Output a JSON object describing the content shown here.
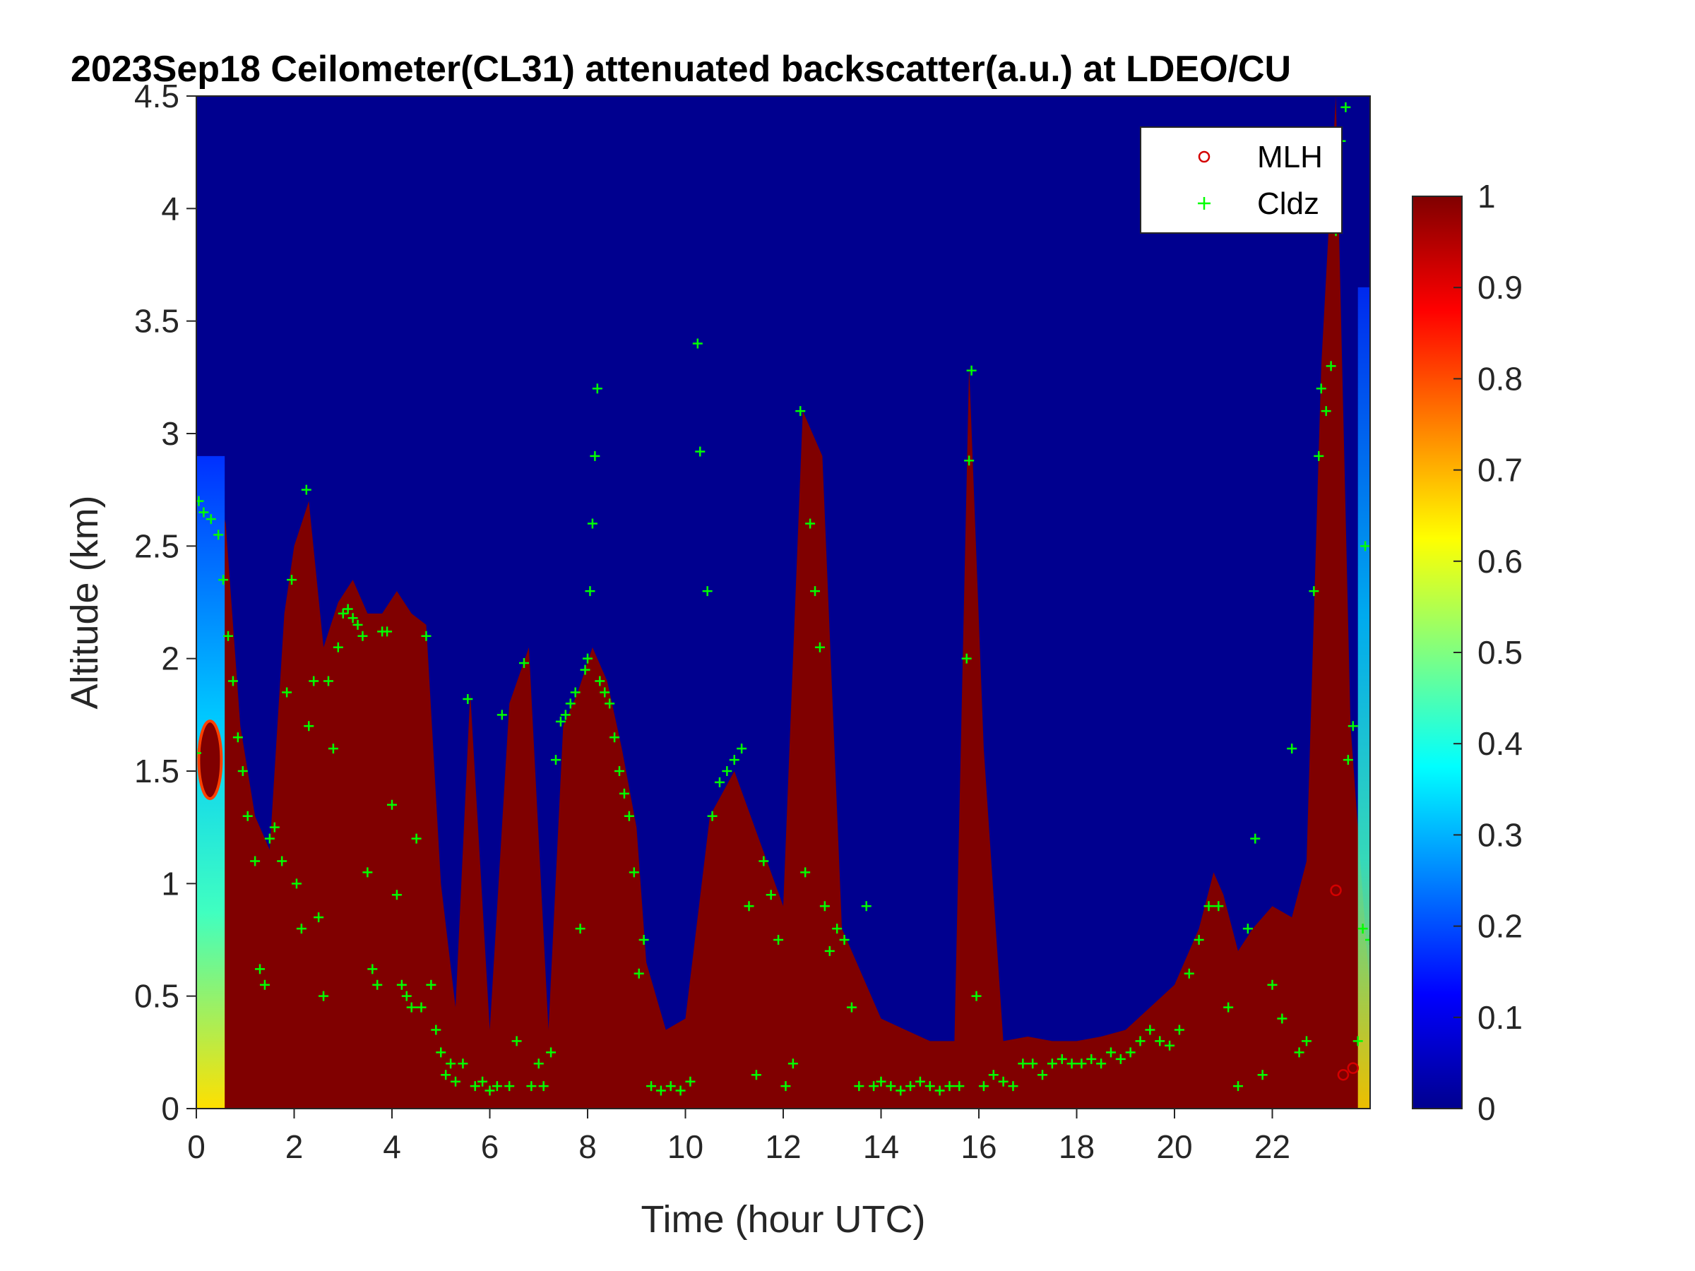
{
  "chart_data": {
    "type": "heatmap",
    "title": "2023Sep18 Ceilometer(CL31) attenuated backscatter(a.u.) at LDEO/CU",
    "xlabel": "Time (hour UTC)",
    "ylabel": "Altitude (km)",
    "xlim": [
      0,
      24
    ],
    "ylim": [
      0,
      4.5
    ],
    "x_ticks": [
      "0",
      "2",
      "4",
      "6",
      "8",
      "10",
      "12",
      "14",
      "16",
      "18",
      "20",
      "22"
    ],
    "y_ticks": [
      "0",
      "0.5",
      "1",
      "1.5",
      "2",
      "2.5",
      "3",
      "3.5",
      "4",
      "4.5"
    ],
    "colorbar": {
      "colormap": "jet",
      "range": [
        0,
        1
      ],
      "ticks": [
        "0",
        "0.1",
        "0.2",
        "0.3",
        "0.4",
        "0.5",
        "0.6",
        "0.7",
        "0.8",
        "0.9",
        "1"
      ]
    },
    "legend": {
      "position": "top-right",
      "entries": [
        {
          "label": "MLH",
          "marker": "circle",
          "color": "#d40000"
        },
        {
          "label": "Cldz",
          "marker": "plus",
          "color": "#00ff00"
        }
      ]
    },
    "layer_top_km": [
      [
        0.0,
        2.9
      ],
      [
        0.3,
        2.85
      ],
      [
        0.6,
        2.6
      ],
      [
        0.9,
        1.7
      ],
      [
        1.2,
        1.3
      ],
      [
        1.5,
        1.15
      ],
      [
        1.8,
        2.2
      ],
      [
        2.0,
        2.5
      ],
      [
        2.3,
        2.7
      ],
      [
        2.6,
        2.05
      ],
      [
        2.9,
        2.25
      ],
      [
        3.2,
        2.35
      ],
      [
        3.5,
        2.2
      ],
      [
        3.8,
        2.2
      ],
      [
        4.1,
        2.3
      ],
      [
        4.4,
        2.2
      ],
      [
        4.7,
        2.15
      ],
      [
        5.0,
        1.0
      ],
      [
        5.3,
        0.45
      ],
      [
        5.6,
        1.85
      ],
      [
        6.0,
        0.35
      ],
      [
        6.4,
        1.8
      ],
      [
        6.8,
        2.05
      ],
      [
        7.2,
        0.35
      ],
      [
        7.5,
        1.7
      ],
      [
        7.8,
        1.85
      ],
      [
        8.1,
        2.05
      ],
      [
        8.4,
        1.9
      ],
      [
        8.7,
        1.6
      ],
      [
        9.0,
        1.25
      ],
      [
        9.2,
        0.65
      ],
      [
        9.6,
        0.35
      ],
      [
        10.0,
        0.4
      ],
      [
        10.5,
        1.3
      ],
      [
        11.0,
        1.5
      ],
      [
        11.5,
        1.2
      ],
      [
        12.0,
        0.9
      ],
      [
        12.4,
        3.1
      ],
      [
        12.8,
        2.9
      ],
      [
        13.2,
        0.8
      ],
      [
        13.6,
        0.6
      ],
      [
        14.0,
        0.4
      ],
      [
        14.5,
        0.35
      ],
      [
        15.0,
        0.3
      ],
      [
        15.5,
        0.3
      ],
      [
        15.8,
        3.3
      ],
      [
        16.1,
        1.6
      ],
      [
        16.5,
        0.3
      ],
      [
        17.0,
        0.32
      ],
      [
        17.5,
        0.3
      ],
      [
        18.0,
        0.3
      ],
      [
        18.5,
        0.32
      ],
      [
        19.0,
        0.35
      ],
      [
        19.5,
        0.45
      ],
      [
        20.0,
        0.55
      ],
      [
        20.5,
        0.8
      ],
      [
        20.8,
        1.05
      ],
      [
        21.0,
        0.95
      ],
      [
        21.3,
        0.7
      ],
      [
        21.6,
        0.8
      ],
      [
        22.0,
        0.9
      ],
      [
        22.4,
        0.85
      ],
      [
        22.7,
        1.1
      ],
      [
        23.0,
        3.3
      ],
      [
        23.3,
        4.5
      ],
      [
        23.6,
        1.7
      ],
      [
        24.0,
        0.5
      ]
    ],
    "series": [
      {
        "name": "Cldz",
        "points": [
          [
            0.0,
            1.58
          ],
          [
            0.05,
            2.7
          ],
          [
            0.15,
            2.65
          ],
          [
            0.3,
            2.62
          ],
          [
            0.45,
            2.55
          ],
          [
            0.55,
            2.35
          ],
          [
            0.65,
            2.1
          ],
          [
            0.75,
            1.9
          ],
          [
            0.85,
            1.65
          ],
          [
            0.95,
            1.5
          ],
          [
            1.05,
            1.3
          ],
          [
            1.2,
            1.1
          ],
          [
            1.3,
            0.62
          ],
          [
            1.4,
            0.55
          ],
          [
            1.5,
            1.2
          ],
          [
            1.6,
            1.25
          ],
          [
            1.75,
            1.1
          ],
          [
            1.85,
            1.85
          ],
          [
            1.95,
            2.35
          ],
          [
            2.05,
            1.0
          ],
          [
            2.15,
            0.8
          ],
          [
            2.25,
            2.75
          ],
          [
            2.3,
            1.7
          ],
          [
            2.4,
            1.9
          ],
          [
            2.5,
            0.85
          ],
          [
            2.6,
            0.5
          ],
          [
            2.7,
            1.9
          ],
          [
            2.8,
            1.6
          ],
          [
            2.9,
            2.05
          ],
          [
            3.0,
            2.2
          ],
          [
            3.1,
            2.22
          ],
          [
            3.2,
            2.18
          ],
          [
            3.3,
            2.15
          ],
          [
            3.4,
            2.1
          ],
          [
            3.5,
            1.05
          ],
          [
            3.6,
            0.62
          ],
          [
            3.7,
            0.55
          ],
          [
            3.8,
            2.12
          ],
          [
            3.9,
            2.12
          ],
          [
            4.0,
            1.35
          ],
          [
            4.1,
            0.95
          ],
          [
            4.2,
            0.55
          ],
          [
            4.3,
            0.5
          ],
          [
            4.4,
            0.45
          ],
          [
            4.5,
            1.2
          ],
          [
            4.6,
            0.45
          ],
          [
            4.7,
            2.1
          ],
          [
            4.8,
            0.55
          ],
          [
            4.9,
            0.35
          ],
          [
            5.0,
            0.25
          ],
          [
            5.1,
            0.15
          ],
          [
            5.2,
            0.2
          ],
          [
            5.3,
            0.12
          ],
          [
            5.45,
            0.2
          ],
          [
            5.55,
            1.82
          ],
          [
            5.7,
            0.1
          ],
          [
            5.85,
            0.12
          ],
          [
            6.0,
            0.08
          ],
          [
            6.15,
            0.1
          ],
          [
            6.25,
            1.75
          ],
          [
            6.4,
            0.1
          ],
          [
            6.55,
            0.3
          ],
          [
            6.7,
            1.98
          ],
          [
            6.85,
            0.1
          ],
          [
            7.0,
            0.2
          ],
          [
            7.1,
            0.1
          ],
          [
            7.25,
            0.25
          ],
          [
            7.35,
            1.55
          ],
          [
            7.45,
            1.72
          ],
          [
            7.55,
            1.75
          ],
          [
            7.65,
            1.8
          ],
          [
            7.75,
            1.85
          ],
          [
            7.85,
            0.8
          ],
          [
            7.95,
            1.95
          ],
          [
            8.0,
            2.0
          ],
          [
            8.05,
            2.3
          ],
          [
            8.1,
            2.6
          ],
          [
            8.15,
            2.9
          ],
          [
            8.2,
            3.2
          ],
          [
            8.25,
            1.9
          ],
          [
            8.35,
            1.85
          ],
          [
            8.45,
            1.8
          ],
          [
            8.55,
            1.65
          ],
          [
            8.65,
            1.5
          ],
          [
            8.75,
            1.4
          ],
          [
            8.85,
            1.3
          ],
          [
            8.95,
            1.05
          ],
          [
            9.05,
            0.6
          ],
          [
            9.15,
            0.75
          ],
          [
            9.3,
            0.1
          ],
          [
            9.5,
            0.08
          ],
          [
            9.7,
            0.1
          ],
          [
            9.9,
            0.08
          ],
          [
            10.1,
            0.12
          ],
          [
            10.25,
            3.4
          ],
          [
            10.3,
            2.92
          ],
          [
            10.45,
            2.3
          ],
          [
            10.55,
            1.3
          ],
          [
            10.7,
            1.45
          ],
          [
            10.85,
            1.5
          ],
          [
            11.0,
            1.55
          ],
          [
            11.15,
            1.6
          ],
          [
            11.3,
            0.9
          ],
          [
            11.45,
            0.15
          ],
          [
            11.6,
            1.1
          ],
          [
            11.75,
            0.95
          ],
          [
            11.9,
            0.75
          ],
          [
            12.05,
            0.1
          ],
          [
            12.2,
            0.2
          ],
          [
            12.35,
            3.1
          ],
          [
            12.45,
            1.05
          ],
          [
            12.55,
            2.6
          ],
          [
            12.65,
            2.3
          ],
          [
            12.75,
            2.05
          ],
          [
            12.85,
            0.9
          ],
          [
            12.95,
            0.7
          ],
          [
            13.1,
            0.8
          ],
          [
            13.25,
            0.75
          ],
          [
            13.4,
            0.45
          ],
          [
            13.55,
            0.1
          ],
          [
            13.7,
            0.9
          ],
          [
            13.85,
            0.1
          ],
          [
            14.0,
            0.12
          ],
          [
            14.2,
            0.1
          ],
          [
            14.4,
            0.08
          ],
          [
            14.6,
            0.1
          ],
          [
            14.8,
            0.12
          ],
          [
            15.0,
            0.1
          ],
          [
            15.2,
            0.08
          ],
          [
            15.4,
            0.1
          ],
          [
            15.6,
            0.1
          ],
          [
            15.75,
            2.0
          ],
          [
            15.8,
            2.88
          ],
          [
            15.85,
            3.28
          ],
          [
            15.95,
            0.5
          ],
          [
            16.1,
            0.1
          ],
          [
            16.3,
            0.15
          ],
          [
            16.5,
            0.12
          ],
          [
            16.7,
            0.1
          ],
          [
            16.9,
            0.2
          ],
          [
            17.1,
            0.2
          ],
          [
            17.3,
            0.15
          ],
          [
            17.5,
            0.2
          ],
          [
            17.7,
            0.22
          ],
          [
            17.9,
            0.2
          ],
          [
            18.1,
            0.2
          ],
          [
            18.3,
            0.22
          ],
          [
            18.5,
            0.2
          ],
          [
            18.7,
            0.25
          ],
          [
            18.9,
            0.22
          ],
          [
            19.1,
            0.25
          ],
          [
            19.3,
            0.3
          ],
          [
            19.5,
            0.35
          ],
          [
            19.7,
            0.3
          ],
          [
            19.9,
            0.28
          ],
          [
            20.1,
            0.35
          ],
          [
            20.3,
            0.6
          ],
          [
            20.5,
            0.75
          ],
          [
            20.7,
            0.9
          ],
          [
            20.9,
            0.9
          ],
          [
            21.1,
            0.45
          ],
          [
            21.3,
            0.1
          ],
          [
            21.5,
            0.8
          ],
          [
            21.65,
            1.2
          ],
          [
            21.8,
            0.15
          ],
          [
            22.0,
            0.55
          ],
          [
            22.2,
            0.4
          ],
          [
            22.4,
            1.6
          ],
          [
            22.55,
            0.25
          ],
          [
            22.7,
            0.3
          ],
          [
            22.85,
            2.3
          ],
          [
            22.95,
            2.9
          ],
          [
            23.0,
            3.2
          ],
          [
            23.1,
            3.1
          ],
          [
            23.2,
            3.3
          ],
          [
            23.3,
            3.9
          ],
          [
            23.4,
            4.3
          ],
          [
            23.5,
            4.45
          ],
          [
            23.55,
            1.55
          ],
          [
            23.65,
            1.7
          ],
          [
            23.75,
            0.3
          ],
          [
            23.85,
            0.8
          ],
          [
            23.9,
            2.5
          ],
          [
            24.0,
            0.75
          ]
        ]
      },
      {
        "name": "MLH",
        "points": [
          [
            23.3,
            0.97
          ],
          [
            23.45,
            0.15
          ],
          [
            23.65,
            0.18
          ]
        ]
      }
    ]
  }
}
